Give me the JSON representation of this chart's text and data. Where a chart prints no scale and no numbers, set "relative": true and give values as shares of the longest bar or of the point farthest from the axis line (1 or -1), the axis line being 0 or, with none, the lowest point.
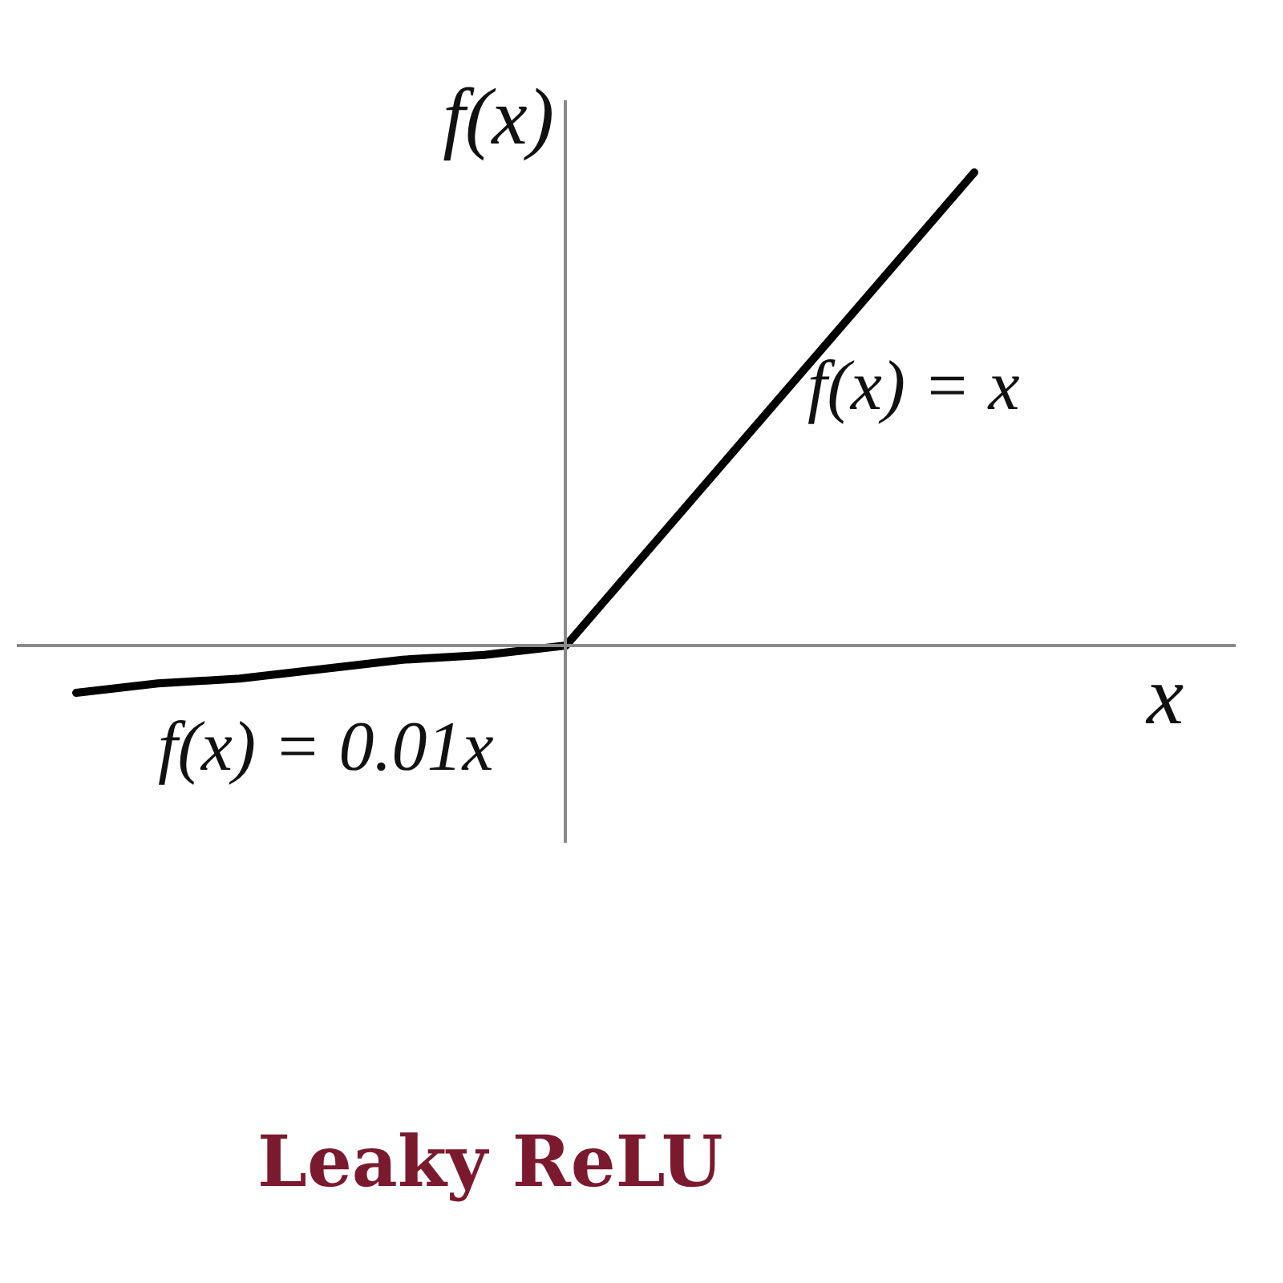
{
  "chart_data": {
    "type": "line",
    "title": "Leaky ReLU",
    "xlabel": "x",
    "ylabel": "f(x)",
    "annotations": [
      "f(x) = x",
      "f(x) = 0.01x"
    ],
    "relative": true,
    "categories": [
      null,
      null,
      null,
      null,
      null,
      null,
      null,
      null,
      null,
      null,
      null,
      null
    ],
    "series": [
      {
        "color": "#000000",
        "values": [
          -0.1,
          -0.08,
          -0.07,
          -0.05,
          -0.03,
          -0.02,
          0,
          0.2,
          0.4,
          0.6,
          0.8,
          1
        ]
      }
    ]
  }
}
